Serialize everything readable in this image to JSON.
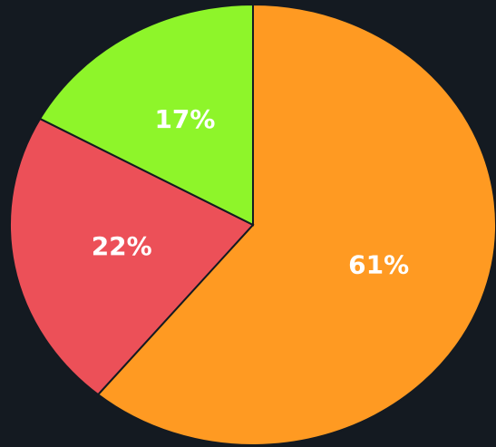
{
  "chart_data": {
    "type": "pie",
    "categories": [
      null,
      null,
      null
    ],
    "values": [
      61,
      22,
      17
    ],
    "value_labels": [
      "61%",
      "22%",
      "17%"
    ],
    "colors": [
      "#ff9a22",
      "#ec5058",
      "#8ef52a"
    ]
  }
}
